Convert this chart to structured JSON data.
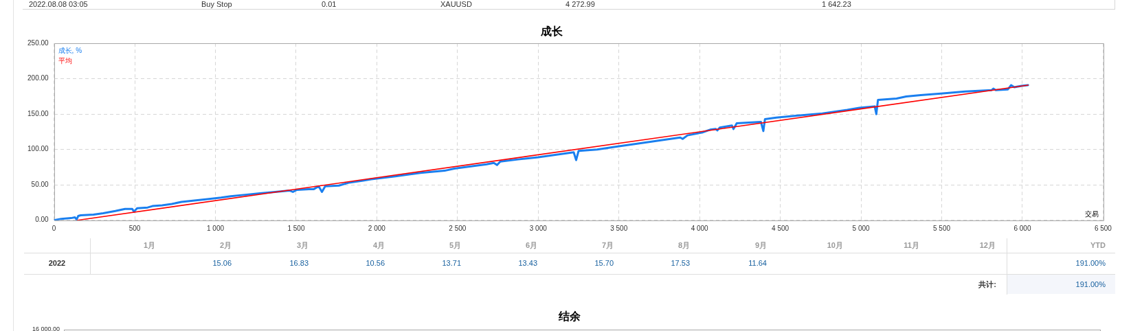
{
  "chart_data": [
    {
      "type": "other",
      "annotations": [
        "2022.08.08 03:05",
        "Buy Stop",
        "0.01",
        "XAUUSD",
        "4 272.99",
        "1 642.23"
      ]
    },
    {
      "type": "line",
      "title": "成长",
      "xlabel": "交易",
      "series": [
        {
          "name": "成长, %",
          "color": "#1a7fef",
          "x": [
            0,
            45,
            105,
            130,
            140,
            150,
            165,
            245,
            305,
            380,
            440,
            485,
            495,
            515,
            580,
            610,
            670,
            730,
            790,
            880,
            960,
            1035,
            1095,
            1185,
            1275,
            1370,
            1460,
            1480,
            1505,
            1580,
            1610,
            1640,
            1660,
            1680,
            1765,
            1825,
            1915,
            1965,
            2115,
            2270,
            2420,
            2480,
            2575,
            2680,
            2725,
            2745,
            2765,
            2875,
            3000,
            3120,
            3220,
            3235,
            3250,
            3365,
            3485,
            3635,
            3790,
            3880,
            3895,
            3925,
            4015,
            4065,
            4100,
            4110,
            4125,
            4200,
            4210,
            4230,
            4305,
            4380,
            4395,
            4405,
            4475,
            4610,
            4760,
            4915,
            4990,
            5085,
            5095,
            5105,
            5220,
            5280,
            5370,
            5495,
            5645,
            5810,
            5820,
            5835,
            5910,
            5930,
            5950,
            5995,
            6035
          ],
          "values": [
            0,
            2,
            3,
            4,
            1,
            6,
            7,
            8,
            10,
            13,
            16,
            16,
            12,
            17,
            18,
            20,
            21,
            23,
            26,
            28,
            30,
            32,
            34,
            36,
            38,
            40,
            42,
            40,
            43,
            44,
            44,
            48,
            40,
            48,
            49,
            53,
            56,
            58,
            62,
            67,
            70,
            73,
            76,
            79,
            81,
            78,
            83,
            86,
            89,
            93,
            96,
            85,
            98,
            100,
            104,
            109,
            114,
            117,
            115,
            120,
            124,
            128,
            129,
            127,
            131,
            134,
            129,
            137,
            138,
            139,
            126,
            143,
            145,
            148,
            151,
            156,
            159,
            161,
            150,
            170,
            172,
            175,
            177,
            179,
            182,
            184,
            186,
            184,
            185,
            191,
            188,
            190,
            191
          ]
        },
        {
          "name": "平均",
          "color": "#ff0000",
          "x": [
            145,
            6035
          ],
          "values": [
            0,
            191
          ]
        }
      ],
      "xlim": [
        0,
        6500
      ],
      "ylim": [
        0,
        250
      ],
      "xticks": [
        0,
        500,
        {
          "value": 1000,
          "label": "1 000"
        },
        {
          "value": 1500,
          "label": "1 500"
        },
        {
          "value": 2000,
          "label": "2 000"
        },
        {
          "value": 2500,
          "label": "2 500"
        },
        {
          "value": 3000,
          "label": "3 000"
        },
        {
          "value": 3500,
          "label": "3 500"
        },
        {
          "value": 4000,
          "label": "4 000"
        },
        {
          "value": 4500,
          "label": "4 500"
        },
        {
          "value": 5000,
          "label": "5 000"
        },
        {
          "value": 5500,
          "label": "5 500"
        },
        {
          "value": 6000,
          "label": "6 000"
        },
        {
          "value": 6500,
          "label": "6 500"
        }
      ],
      "yticks": [
        {
          "value": 0,
          "label": "0.00"
        },
        {
          "value": 50,
          "label": "50.00"
        },
        {
          "value": 100,
          "label": "100.00"
        },
        {
          "value": 150,
          "label": "150.00"
        },
        {
          "value": 200,
          "label": "200.00"
        },
        {
          "value": 250,
          "label": "250.00"
        }
      ],
      "grid": true,
      "legend": "top left",
      "marker": "none",
      "line_style": "solid"
    },
    {
      "type": "heatmap",
      "categories": [
        "1月",
        "2月",
        "3月",
        "4月",
        "5月",
        "6月",
        "7月",
        "8月",
        "9月",
        "10月",
        "11月",
        "12月",
        "YTD"
      ],
      "y_categories": [
        "2022"
      ],
      "cells": [
        [
          null,
          15.06,
          16.83,
          10.56,
          13.71,
          13.43,
          15.7,
          17.53,
          11.64,
          null,
          null,
          null,
          191.0
        ]
      ],
      "cell_labels": [
        [
          null,
          "15.06",
          "16.83",
          "10.56",
          "13.71",
          "13.43",
          "15.70",
          "17.53",
          "11.64",
          null,
          null,
          null,
          "191.00%"
        ]
      ],
      "annotations": [
        "共计:",
        "191.00%"
      ]
    },
    {
      "type": "other",
      "title": "结余",
      "annotations": [
        "16 000.00"
      ]
    }
  ]
}
